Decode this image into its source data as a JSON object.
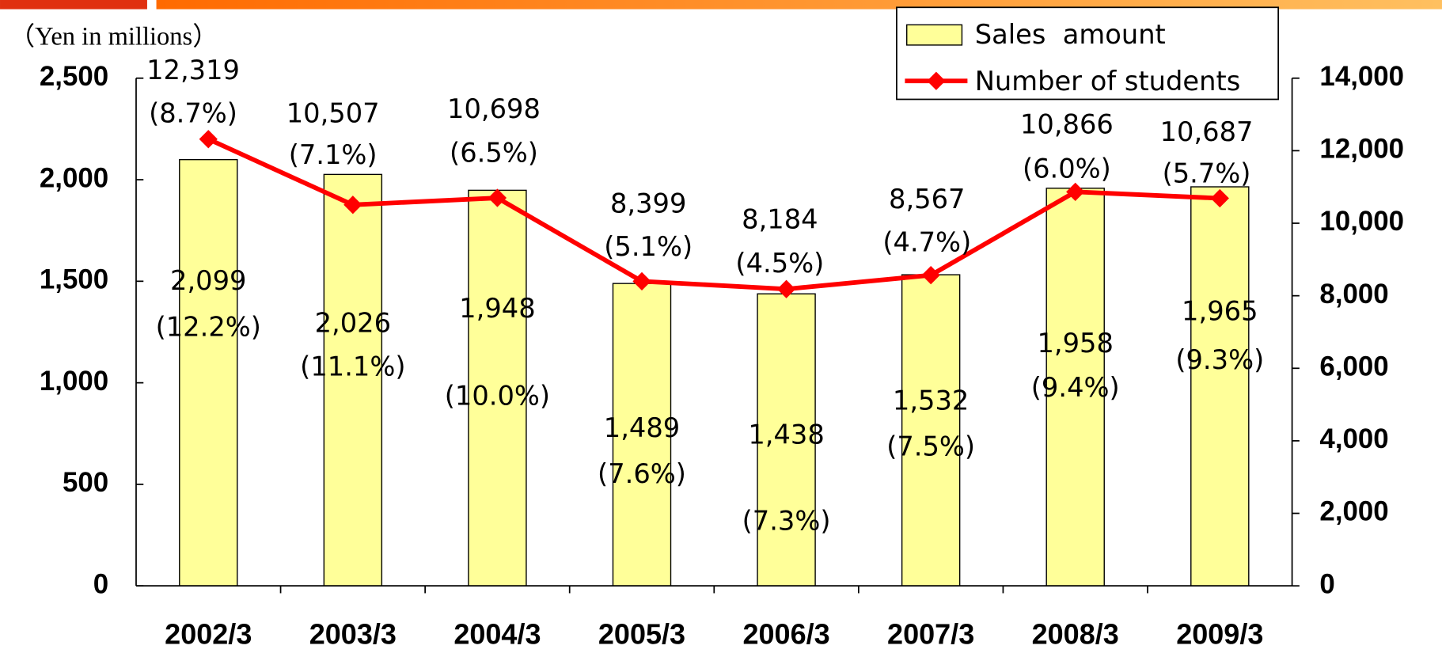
{
  "chart_data": {
    "type": "bar_line",
    "y_unit_label": "（Yen in millions）",
    "categories": [
      "2002/3",
      "2003/3",
      "2004/3",
      "2005/3",
      "2006/3",
      "2007/3",
      "2008/3",
      "2009/3"
    ],
    "series": [
      {
        "name": "Sales  amount",
        "color": "#ffff99",
        "values": [
          2099,
          2026,
          1948,
          1489,
          1438,
          1532,
          1958,
          1965
        ],
        "value_labels": [
          "2,099",
          "2,026",
          "1,948",
          "1,489",
          "1,438",
          "1,532",
          "1,958",
          "1,965"
        ],
        "share_labels": [
          "(12.2%)",
          "(11.1%)",
          "(10.0%)",
          "(7.6%)",
          "(7.3%)",
          "(7.5%)",
          "(9.4%)",
          "(9.3%)"
        ]
      },
      {
        "name": "Number of students",
        "color": "#ff0000",
        "axis": "y2",
        "values": [
          12319,
          10507,
          10698,
          8399,
          8184,
          8567,
          10866,
          10687
        ],
        "value_labels": [
          "12,319",
          "10,507",
          "10,698",
          "8,399",
          "8,184",
          "8,567",
          "10,866",
          "10,687"
        ],
        "share_labels": [
          "(8.7%)",
          "(7.1%)",
          "(6.5%)",
          "(5.1%)",
          "(4.5%)",
          "(4.7%)",
          "(6.0%)",
          "(5.7%)"
        ]
      }
    ],
    "ylim": [
      0,
      2500
    ],
    "yticks": [
      0,
      500,
      {
        "value": 1000,
        "label": "1,000"
      },
      {
        "value": 1500,
        "label": "1,500"
      },
      {
        "value": 2000,
        "label": "2,000"
      },
      {
        "value": 2500,
        "label": "2,500"
      }
    ],
    "y2lim": [
      0,
      14000
    ],
    "y2ticks": [
      0,
      {
        "value": 2000,
        "label": "2,000"
      },
      {
        "value": 4000,
        "label": "4,000"
      },
      {
        "value": 6000,
        "label": "6,000"
      },
      {
        "value": 8000,
        "label": "8,000"
      },
      {
        "value": 10000,
        "label": "10,000"
      },
      {
        "value": 12000,
        "label": "12,000"
      },
      {
        "value": 14000,
        "label": "14,000"
      }
    ],
    "legend": "top-right"
  }
}
